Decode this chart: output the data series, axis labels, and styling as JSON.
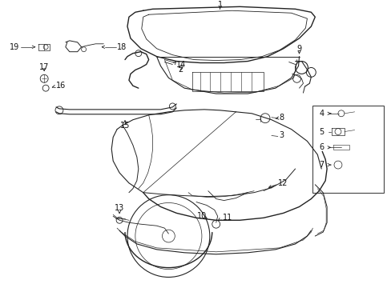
{
  "bg_color": "#ffffff",
  "line_color": "#222222",
  "text_color": "#111111",
  "fig_width": 4.89,
  "fig_height": 3.6,
  "dpi": 100
}
